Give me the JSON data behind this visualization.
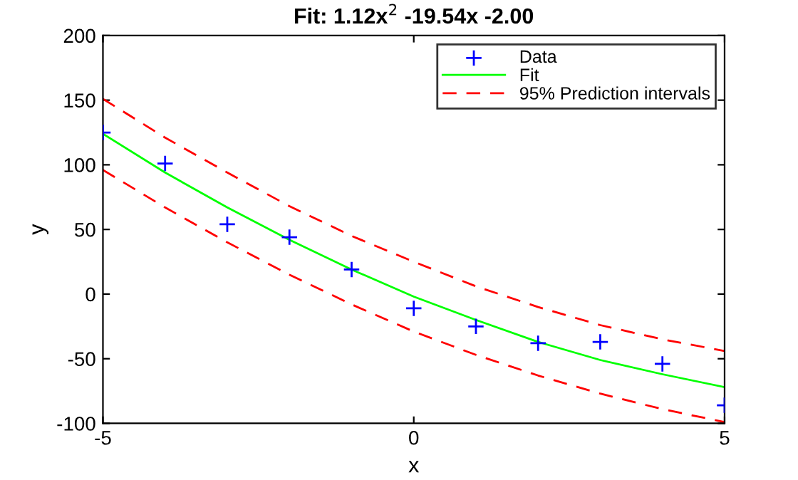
{
  "chart_data": {
    "type": "line",
    "title": "Fit: 1.12x$^{2}$ -19.54x -2.00",
    "xlabel": "x",
    "ylabel": "y",
    "x": [
      -5,
      -4,
      -3,
      -2,
      -1,
      0,
      1,
      2,
      3,
      4,
      5
    ],
    "series": [
      {
        "name": "Data",
        "type": "scatter",
        "marker": "cross",
        "color": "#0000ff",
        "values": [
          125,
          101,
          54,
          44,
          19,
          -11,
          -25,
          -38,
          -37,
          -54,
          -86
        ]
      },
      {
        "name": "Fit",
        "line_style": "solid",
        "color": "#00ff00",
        "values": [
          124,
          94,
          67,
          42,
          19,
          -2,
          -20,
          -37,
          -51,
          -62,
          -72
        ]
      },
      {
        "name": "95% Prediction intervals",
        "line_style": "dashed",
        "color": "#ff0000",
        "values": [
          151,
          121,
          94,
          68,
          45,
          25,
          6,
          -10,
          -24,
          -35,
          -44
        ]
      },
      {
        "line_style": "dashed",
        "color": "#ff0000",
        "values": [
          96,
          67,
          40,
          15,
          -8,
          -29,
          -47,
          -63,
          -77,
          -89,
          -99
        ]
      }
    ],
    "xlim": [
      -5,
      5
    ],
    "xticks": [
      -5,
      0,
      5
    ],
    "ylim": [
      -100,
      200
    ],
    "yticks": [
      -100,
      -50,
      0,
      50,
      100,
      150,
      200
    ],
    "grid": false,
    "legend": "top right"
  }
}
